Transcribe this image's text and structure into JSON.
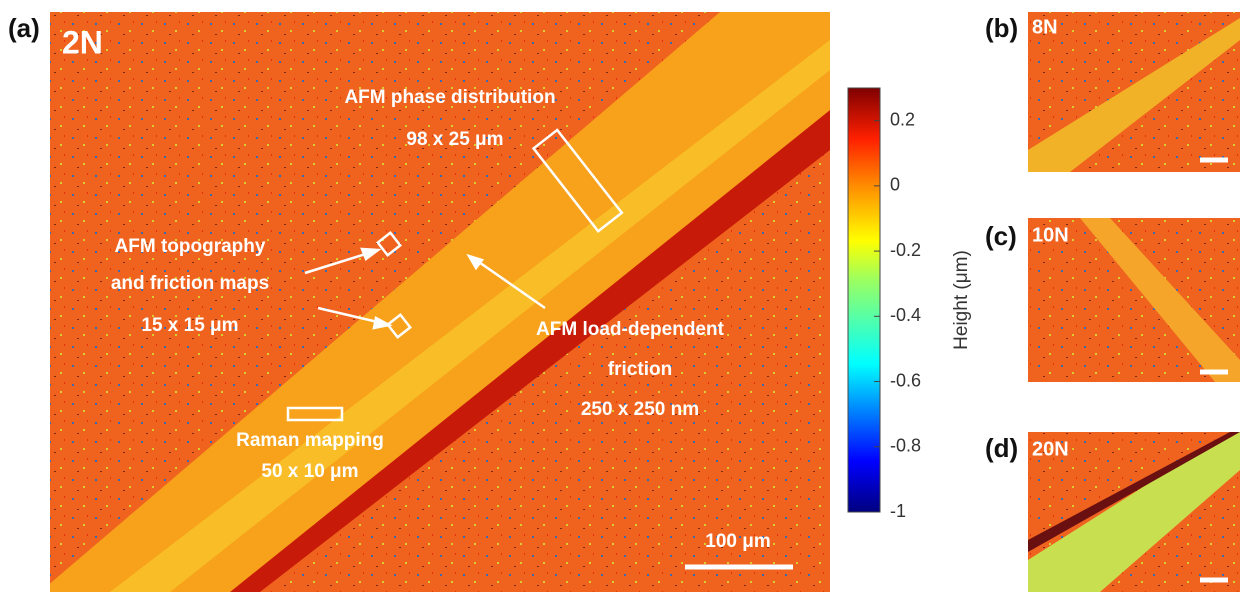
{
  "panels": [
    {
      "label": "(a)",
      "load": "2N"
    },
    {
      "label": "(b)",
      "load": "8N"
    },
    {
      "label": "(c)",
      "load": "10N"
    },
    {
      "label": "(d)",
      "load": "20N"
    }
  ],
  "annotations": [
    "AFM phase distribution",
    "98 x 25 μm",
    "AFM topography",
    "and friction maps",
    "15 x 15 μm",
    "AFM load-dependent",
    "friction",
    "250 x 250 nm",
    "Raman mapping",
    "50 x 10 μm"
  ],
  "scale_bar": "100 μm",
  "colorbar": {
    "label": "Height (μm)",
    "lim": [
      -1,
      0.3
    ],
    "ticks": [
      0.2,
      0,
      -0.2,
      -0.4,
      -0.6,
      -0.8,
      -1
    ]
  }
}
